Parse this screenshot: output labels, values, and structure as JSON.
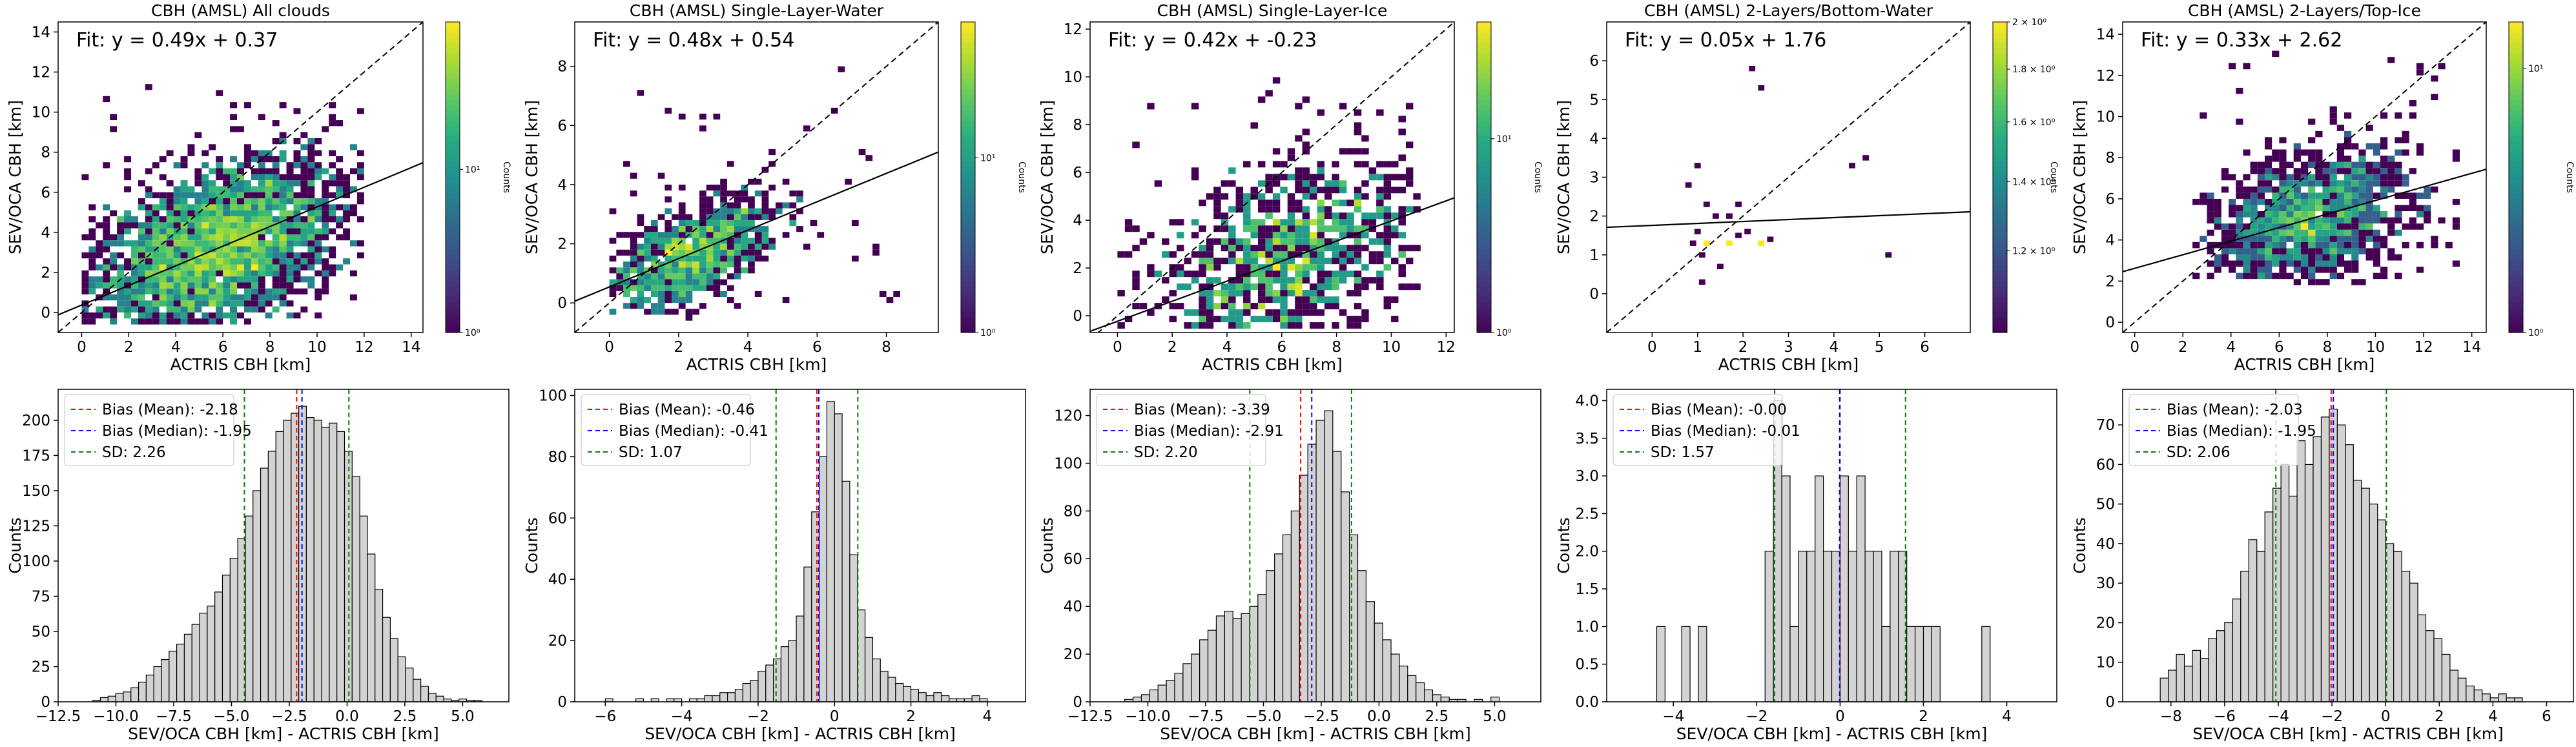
{
  "chart_data": [
    {
      "type": "heatmap",
      "title": "CBH (AMSL) All clouds",
      "xlabel": "ACTRIS CBH [km]",
      "ylabel": "SEV/OCA CBH [km]",
      "xlim": [
        -1.0,
        14.5
      ],
      "ylim": [
        -1.0,
        14.5
      ],
      "xticks": [
        0,
        2,
        4,
        6,
        8,
        10,
        12,
        14
      ],
      "yticks": [
        0,
        2,
        4,
        6,
        8,
        10,
        12,
        14
      ],
      "fit_text": "Fit: y = 0.49x + 0.37",
      "fit": {
        "slope": 0.49,
        "intercept": 0.37
      },
      "one_to_one": true,
      "colorbar": {
        "label": "Counts",
        "ticks": [
          {
            "v": 1,
            "label": "10⁰"
          },
          {
            "v": 10,
            "label": "10¹"
          }
        ],
        "min": 1,
        "max": 80,
        "log": true
      },
      "density": {
        "sx": 2.7,
        "sy": 2.3,
        "cx": 5.8,
        "cy": 3.2,
        "corr": 0.45,
        "bins": 0.3,
        "lo": 0.0,
        "hi": 12.0,
        "n": 2600,
        "seed": 11
      }
    },
    {
      "type": "heatmap",
      "title": "CBH (AMSL) Single-Layer-Water",
      "xlabel": "ACTRIS CBH [km]",
      "ylabel": "SEV/OCA CBH [km]",
      "xlim": [
        -1.0,
        9.5
      ],
      "ylim": [
        -1.0,
        9.5
      ],
      "xticks": [
        0,
        2,
        4,
        6,
        8
      ],
      "yticks": [
        0,
        2,
        4,
        6,
        8
      ],
      "fit_text": "Fit: y = 0.48x + 0.54",
      "fit": {
        "slope": 0.48,
        "intercept": 0.54
      },
      "one_to_one": true,
      "colorbar": {
        "label": "Counts",
        "ticks": [
          {
            "v": 1,
            "label": "10⁰"
          },
          {
            "v": 10,
            "label": "10¹"
          }
        ],
        "min": 1,
        "max": 60,
        "log": true
      },
      "density": {
        "sx": 1.3,
        "sy": 1.0,
        "cx": 2.2,
        "cy": 1.5,
        "corr": 0.6,
        "bins": 0.2,
        "lo": 0.0,
        "hi": 8.5,
        "n": 900,
        "seed": 23
      }
    },
    {
      "type": "heatmap",
      "title": "CBH (AMSL) Single-Layer-Ice",
      "xlabel": "ACTRIS CBH [km]",
      "ylabel": "SEV/OCA CBH [km]",
      "xlim": [
        -1.0,
        12.3
      ],
      "ylim": [
        -0.7,
        12.3
      ],
      "xticks": [
        0,
        2,
        4,
        6,
        8,
        10,
        12
      ],
      "yticks": [
        0,
        2,
        4,
        6,
        8,
        10,
        12
      ],
      "fit_text": "Fit: y = 0.42x + -0.23",
      "fit": {
        "slope": 0.42,
        "intercept": -0.23
      },
      "one_to_one": true,
      "colorbar": {
        "label": "Counts",
        "ticks": [
          {
            "v": 1,
            "label": "10⁰"
          },
          {
            "v": 10,
            "label": "10¹"
          }
        ],
        "min": 1,
        "max": 40,
        "log": true
      },
      "density": {
        "sx": 2.3,
        "sy": 2.1,
        "cx": 6.2,
        "cy": 2.4,
        "corr": 0.4,
        "bins": 0.27,
        "lo": 0.0,
        "hi": 11.0,
        "n": 1000,
        "seed": 37
      }
    },
    {
      "type": "heatmap",
      "title": "CBH (AMSL) 2-Layers/Bottom-Water",
      "xlabel": "ACTRIS CBH [km]",
      "ylabel": "SEV/OCA CBH [km]",
      "xlim": [
        -1.0,
        7.0
      ],
      "ylim": [
        -1.0,
        7.0
      ],
      "xticks": [
        0,
        1,
        2,
        3,
        4,
        5,
        6
      ],
      "yticks": [
        0,
        1,
        2,
        3,
        4,
        5,
        6
      ],
      "fit_text": "Fit: y = 0.05x + 1.76",
      "fit": {
        "slope": 0.05,
        "intercept": 1.76
      },
      "one_to_one": true,
      "colorbar": {
        "label": "Counts",
        "ticks": [
          {
            "v": 1.2,
            "label": "1.2 × 10⁰"
          },
          {
            "v": 1.4,
            "label": "1.4 × 10⁰"
          },
          {
            "v": 1.6,
            "label": "1.6 × 10⁰"
          },
          {
            "v": 1.8,
            "label": "1.8 × 10⁰"
          },
          {
            "v": 2.0,
            "label": "2 × 10⁰"
          }
        ],
        "min": 1.0,
        "max": 2.0,
        "log": true
      },
      "points": [
        [
          1.0,
          3.3,
          1
        ],
        [
          1.2,
          2.3,
          1
        ],
        [
          1.4,
          2.0,
          1
        ],
        [
          1.7,
          2.0,
          1
        ],
        [
          1.9,
          2.3,
          1
        ],
        [
          1.0,
          1.6,
          1
        ],
        [
          1.2,
          1.3,
          2
        ],
        [
          1.1,
          1.0,
          1
        ],
        [
          0.9,
          1.3,
          1
        ],
        [
          1.7,
          1.3,
          2
        ],
        [
          1.9,
          1.5,
          1
        ],
        [
          2.4,
          1.3,
          2
        ],
        [
          2.6,
          1.4,
          1
        ],
        [
          2.1,
          1.6,
          1
        ],
        [
          2.2,
          5.8,
          1
        ],
        [
          2.4,
          5.3,
          1
        ],
        [
          4.4,
          3.3,
          1
        ],
        [
          4.7,
          3.5,
          1
        ],
        [
          5.2,
          1.0,
          1
        ],
        [
          1.5,
          0.7,
          1
        ],
        [
          0.8,
          2.8,
          1
        ],
        [
          1.1,
          0.3,
          1
        ]
      ]
    },
    {
      "type": "heatmap",
      "title": "CBH (AMSL) 2-Layers/Top-Ice",
      "xlabel": "ACTRIS CBH [km]",
      "ylabel": "SEV/OCA CBH [km]",
      "xlim": [
        -0.5,
        14.6
      ],
      "ylim": [
        -0.5,
        14.6
      ],
      "xticks": [
        0,
        2,
        4,
        6,
        8,
        10,
        12,
        14
      ],
      "yticks": [
        0,
        2,
        4,
        6,
        8,
        10,
        12,
        14
      ],
      "fit_text": "Fit: y = 0.33x + 2.62",
      "fit": {
        "slope": 0.33,
        "intercept": 2.62
      },
      "one_to_one": true,
      "colorbar": {
        "label": "Counts",
        "ticks": [
          {
            "v": 1,
            "label": "10⁰"
          },
          {
            "v": 10,
            "label": "10¹"
          }
        ],
        "min": 1,
        "max": 15,
        "log": true
      },
      "density": {
        "sx": 2.2,
        "sy": 1.8,
        "cx": 7.4,
        "cy": 5.0,
        "corr": 0.35,
        "bins": 0.3,
        "lo": 2.5,
        "hi": 13.5,
        "n": 1200,
        "seed": 53
      }
    },
    {
      "type": "bar",
      "xlabel": "SEV/OCA CBH [km] - ACTRIS CBH [km]",
      "ylabel": "Counts",
      "xlim": [
        -12.5,
        7.0
      ],
      "ylim": [
        0,
        222
      ],
      "xticks": [
        -12.5,
        -10.0,
        -7.5,
        -5.0,
        -2.5,
        0.0,
        2.5,
        5.0
      ],
      "xtick_labels": [
        "−12.5",
        "−10.0",
        "−7.5",
        "−5.0",
        "−2.5",
        "0.0",
        "2.5",
        "5.0"
      ],
      "yticks": [
        0,
        25,
        50,
        75,
        100,
        125,
        150,
        175,
        200
      ],
      "bin_start": -11.0,
      "bin_width": 0.33,
      "values": [
        1,
        3,
        4,
        6,
        7,
        10,
        14,
        19,
        25,
        30,
        36,
        41,
        48,
        55,
        63,
        68,
        78,
        90,
        102,
        116,
        132,
        150,
        166,
        178,
        192,
        200,
        205,
        210,
        202,
        200,
        195,
        198,
        192,
        178,
        160,
        132,
        105,
        80,
        60,
        45,
        32,
        24,
        16,
        11,
        6,
        4,
        2,
        1,
        2,
        1,
        1
      ],
      "mean": -2.18,
      "median": -1.95,
      "sd": 2.26,
      "legend": [
        "Bias (Mean): -2.18",
        "Bias (Median): -1.95",
        "SD: 2.26"
      ]
    },
    {
      "type": "bar",
      "xlabel": "SEV/OCA CBH [km] - ACTRIS CBH [km]",
      "ylabel": "Counts",
      "xlim": [
        -6.8,
        5.0
      ],
      "ylim": [
        0,
        102
      ],
      "xticks": [
        -6,
        -4,
        -2,
        0,
        2,
        4
      ],
      "xtick_labels": [
        "−6",
        "−4",
        "−2",
        "0",
        "2",
        "4"
      ],
      "yticks": [
        0,
        20,
        40,
        60,
        80,
        100
      ],
      "bin_start": -6.0,
      "bin_width": 0.2,
      "values": [
        1,
        0,
        0,
        0,
        1,
        0,
        1,
        0,
        1,
        1,
        0,
        1,
        1,
        2,
        2,
        3,
        3,
        4,
        6,
        7,
        10,
        12,
        14,
        18,
        20,
        28,
        44,
        62,
        80,
        98,
        94,
        72,
        48,
        30,
        21,
        14,
        10,
        8,
        6,
        5,
        4,
        3,
        2,
        3,
        2,
        1,
        1,
        1,
        2,
        1
      ],
      "mean": -0.46,
      "median": -0.41,
      "sd": 1.07,
      "legend": [
        "Bias (Mean): -0.46",
        "Bias (Median): -0.41",
        "SD: 1.07"
      ]
    },
    {
      "type": "bar",
      "xlabel": "SEV/OCA CBH [km] - ACTRIS CBH [km]",
      "ylabel": "Counts",
      "xlim": [
        -12.5,
        7.0
      ],
      "ylim": [
        0,
        131
      ],
      "xticks": [
        -12.5,
        -10.0,
        -7.5,
        -5.0,
        -2.5,
        0.0,
        2.5,
        5.0
      ],
      "xtick_labels": [
        "−12.5",
        "−10.0",
        "−7.5",
        "−5.0",
        "−2.5",
        "0.0",
        "2.5",
        "5.0"
      ],
      "yticks": [
        0,
        20,
        40,
        60,
        80,
        100,
        120
      ],
      "bin_start": -11.0,
      "bin_width": 0.36,
      "values": [
        1,
        2,
        3,
        5,
        7,
        9,
        12,
        16,
        20,
        26,
        30,
        36,
        38,
        35,
        37,
        40,
        45,
        55,
        62,
        70,
        80,
        95,
        108,
        118,
        122,
        105,
        88,
        70,
        55,
        42,
        33,
        26,
        20,
        15,
        11,
        8,
        5,
        3,
        2,
        1,
        1,
        0,
        1,
        0,
        2
      ],
      "mean": -3.39,
      "median": -2.91,
      "sd": 2.2,
      "legend": [
        "Bias (Mean): -3.39",
        "Bias (Median): -2.91",
        "SD: 2.20"
      ]
    },
    {
      "type": "bar",
      "xlabel": "SEV/OCA CBH [km] - ACTRIS CBH [km]",
      "ylabel": "Counts",
      "xlim": [
        -5.6,
        5.2
      ],
      "ylim": [
        0,
        4.15
      ],
      "xticks": [
        -4,
        -2,
        0,
        2,
        4
      ],
      "xtick_labels": [
        "−4",
        "−2",
        "0",
        "2",
        "4"
      ],
      "yticks": [
        0,
        0.5,
        1.0,
        1.5,
        2.0,
        2.5,
        3.0,
        3.5,
        4.0
      ],
      "ytick_labels": [
        "0.0",
        "0.5",
        "1.0",
        "1.5",
        "2.0",
        "2.5",
        "3.0",
        "3.5",
        "4.0"
      ],
      "bin_start": -4.4,
      "bin_width": 0.2,
      "values": [
        1,
        0,
        0,
        1,
        0,
        1,
        0,
        0,
        0,
        0,
        0,
        0,
        0,
        2,
        4,
        3,
        1,
        2,
        2,
        3,
        2,
        2,
        3,
        2,
        3,
        2,
        2,
        1,
        2,
        2,
        1,
        1,
        1,
        1,
        0,
        0,
        0,
        0,
        0,
        1
      ],
      "mean": -0.0,
      "median": -0.01,
      "sd": 1.57,
      "legend": [
        "Bias (Mean): -0.00",
        "Bias (Median): -0.01",
        "SD: 1.57"
      ]
    },
    {
      "type": "bar",
      "xlabel": "SEV/OCA CBH [km] - ACTRIS CBH [km]",
      "ylabel": "Counts",
      "xlim": [
        -9.8,
        7.0
      ],
      "ylim": [
        0,
        79
      ],
      "xticks": [
        -8,
        -6,
        -4,
        -2,
        0,
        2,
        4,
        6
      ],
      "xtick_labels": [
        "−8",
        "−6",
        "−4",
        "−2",
        "0",
        "2",
        "4",
        "6"
      ],
      "yticks": [
        0,
        10,
        20,
        30,
        40,
        50,
        60,
        70
      ],
      "bin_start": -8.4,
      "bin_width": 0.3,
      "values": [
        6,
        8,
        12,
        9,
        13,
        11,
        16,
        18,
        20,
        26,
        33,
        41,
        38,
        48,
        54,
        60,
        52,
        66,
        60,
        67,
        72,
        74,
        70,
        65,
        56,
        54,
        50,
        46,
        40,
        38,
        33,
        30,
        22,
        18,
        16,
        12,
        8,
        6,
        4,
        3,
        2,
        1,
        2,
        1,
        1
      ],
      "mean": -2.03,
      "median": -1.95,
      "sd": 2.06,
      "legend": [
        "Bias (Mean): -2.03",
        "Bias (Median): -1.95",
        "SD: 2.06"
      ]
    }
  ]
}
